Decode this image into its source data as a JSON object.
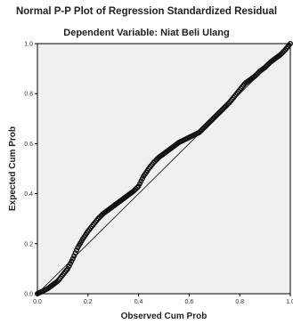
{
  "chart_data": {
    "type": "scatter",
    "title": "Normal P-P Plot of Regression Standardized Residual",
    "subtitle": "Dependent Variable: Niat Beli Ulang",
    "xlabel": "Observed Cum Prob",
    "ylabel": "Expected Cum Prob",
    "xlim": [
      0.0,
      1.0
    ],
    "ylim": [
      0.0,
      1.0
    ],
    "x_ticks": [
      "0.0",
      "0.2",
      "0.4",
      "0.6",
      "0.8",
      "1.0"
    ],
    "y_ticks": [
      "0.0",
      "0.2",
      "0.4",
      "0.6",
      "0.8",
      "1.0"
    ],
    "grid": false,
    "reference_line": [
      [
        0.0,
        0.0
      ],
      [
        1.0,
        1.0
      ]
    ],
    "series": [
      {
        "marker": "open-circle",
        "color": "#111111",
        "points": [
          [
            0.0,
            0.0
          ],
          [
            0.02,
            0.01
          ],
          [
            0.04,
            0.02
          ],
          [
            0.06,
            0.035
          ],
          [
            0.08,
            0.05
          ],
          [
            0.1,
            0.075
          ],
          [
            0.12,
            0.1
          ],
          [
            0.14,
            0.14
          ],
          [
            0.16,
            0.185
          ],
          [
            0.18,
            0.22
          ],
          [
            0.2,
            0.25
          ],
          [
            0.22,
            0.275
          ],
          [
            0.24,
            0.3
          ],
          [
            0.26,
            0.32
          ],
          [
            0.28,
            0.335
          ],
          [
            0.3,
            0.35
          ],
          [
            0.32,
            0.365
          ],
          [
            0.34,
            0.38
          ],
          [
            0.36,
            0.395
          ],
          [
            0.38,
            0.41
          ],
          [
            0.4,
            0.43
          ],
          [
            0.42,
            0.47
          ],
          [
            0.44,
            0.5
          ],
          [
            0.46,
            0.525
          ],
          [
            0.48,
            0.545
          ],
          [
            0.5,
            0.56
          ],
          [
            0.52,
            0.575
          ],
          [
            0.54,
            0.59
          ],
          [
            0.56,
            0.605
          ],
          [
            0.58,
            0.615
          ],
          [
            0.6,
            0.625
          ],
          [
            0.62,
            0.635
          ],
          [
            0.64,
            0.645
          ],
          [
            0.66,
            0.665
          ],
          [
            0.68,
            0.685
          ],
          [
            0.7,
            0.705
          ],
          [
            0.72,
            0.725
          ],
          [
            0.74,
            0.745
          ],
          [
            0.76,
            0.765
          ],
          [
            0.78,
            0.79
          ],
          [
            0.8,
            0.815
          ],
          [
            0.82,
            0.84
          ],
          [
            0.84,
            0.855
          ],
          [
            0.86,
            0.87
          ],
          [
            0.88,
            0.89
          ],
          [
            0.9,
            0.905
          ],
          [
            0.92,
            0.925
          ],
          [
            0.94,
            0.94
          ],
          [
            0.96,
            0.955
          ],
          [
            0.98,
            0.975
          ],
          [
            1.0,
            1.0
          ]
        ]
      }
    ],
    "colors": {
      "plot_background": "#f0f0f0",
      "points": "#111111",
      "reference_line": "#333333",
      "frame": "#000000"
    }
  }
}
